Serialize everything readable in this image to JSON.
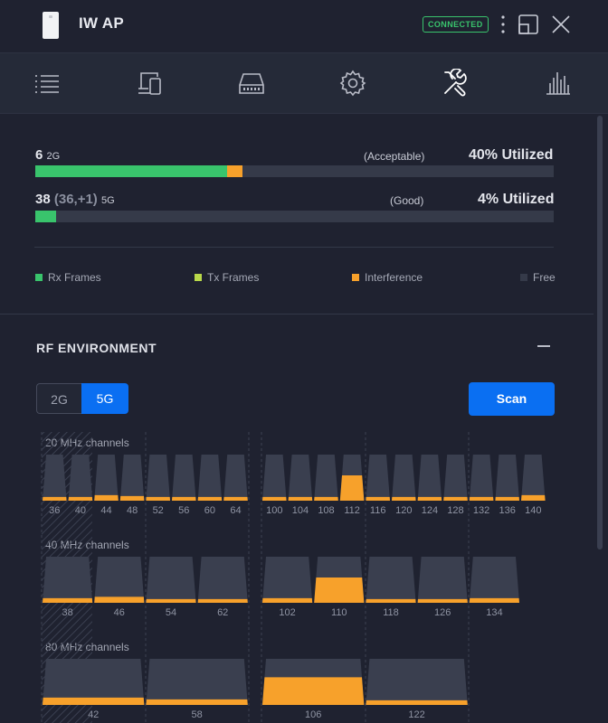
{
  "header": {
    "device_name": "IW AP",
    "status": "CONNECTED",
    "icons": [
      "device-icon",
      "more-vertical-icon",
      "window-icon",
      "close-icon"
    ]
  },
  "nav": {
    "items": [
      {
        "name": "list-icon"
      },
      {
        "name": "devices-icon"
      },
      {
        "name": "storage-icon"
      },
      {
        "name": "gear-icon"
      },
      {
        "name": "tools-icon",
        "active": true
      },
      {
        "name": "bar-chart-icon"
      }
    ]
  },
  "channels": [
    {
      "number": "6",
      "sub": "",
      "band": "2G",
      "quality": "(Acceptable)",
      "utilization": "40% Utilized",
      "rx_pct": 37,
      "tx_pct": 0,
      "interference_pct": 3
    },
    {
      "number": "38",
      "sub": "(36,+1)",
      "band": "5G",
      "quality": "(Good)",
      "utilization": "4% Utilized",
      "rx_pct": 4,
      "tx_pct": 0,
      "interference_pct": 0
    }
  ],
  "legend": [
    {
      "label": "Rx Frames",
      "color": "#39c46c"
    },
    {
      "label": "Tx Frames",
      "color": "#b9d94a"
    },
    {
      "label": "Interference",
      "color": "#f7a12b"
    },
    {
      "label": "Free",
      "color": "#353a49"
    }
  ],
  "rf": {
    "title": "RF ENVIRONMENT",
    "tabs": [
      "2G",
      "5G"
    ],
    "active_tab": "5G",
    "scan_label": "Scan",
    "groups": [
      {
        "label": "20 MHz channels",
        "channels": [
          {
            "ch": "36",
            "level": 0.08
          },
          {
            "ch": "40",
            "level": 0.08
          },
          {
            "ch": "44",
            "level": 0.12
          },
          {
            "ch": "48",
            "level": 0.1
          },
          {
            "ch": "52",
            "level": 0.08
          },
          {
            "ch": "56",
            "level": 0.08
          },
          {
            "ch": "60",
            "level": 0.08
          },
          {
            "ch": "64",
            "level": 0.08
          },
          {
            "ch": "100",
            "level": 0.08
          },
          {
            "ch": "104",
            "level": 0.08
          },
          {
            "ch": "108",
            "level": 0.08
          },
          {
            "ch": "112",
            "level": 0.55
          },
          {
            "ch": "116",
            "level": 0.08
          },
          {
            "ch": "120",
            "level": 0.08
          },
          {
            "ch": "124",
            "level": 0.08
          },
          {
            "ch": "128",
            "level": 0.08
          },
          {
            "ch": "132",
            "level": 0.08
          },
          {
            "ch": "136",
            "level": 0.08
          },
          {
            "ch": "140",
            "level": 0.12
          }
        ]
      },
      {
        "label": "40 MHz channels",
        "channels": [
          {
            "ch": "38",
            "level": 0.1
          },
          {
            "ch": "46",
            "level": 0.13
          },
          {
            "ch": "54",
            "level": 0.08
          },
          {
            "ch": "62",
            "level": 0.08
          },
          {
            "ch": "102",
            "level": 0.1
          },
          {
            "ch": "110",
            "level": 0.55
          },
          {
            "ch": "118",
            "level": 0.08
          },
          {
            "ch": "126",
            "level": 0.08
          },
          {
            "ch": "134",
            "level": 0.1
          }
        ]
      },
      {
        "label": "80 MHz channels",
        "channels": [
          {
            "ch": "42",
            "level": 0.16
          },
          {
            "ch": "58",
            "level": 0.12
          },
          {
            "ch": "106",
            "level": 0.6
          },
          {
            "ch": "122",
            "level": 0.1
          }
        ]
      }
    ]
  },
  "colors": {
    "accent": "#0a6ff2",
    "rx": "#39c46c",
    "interference": "#f7a12b",
    "free": "#353a49",
    "connected": "#39c46c"
  }
}
